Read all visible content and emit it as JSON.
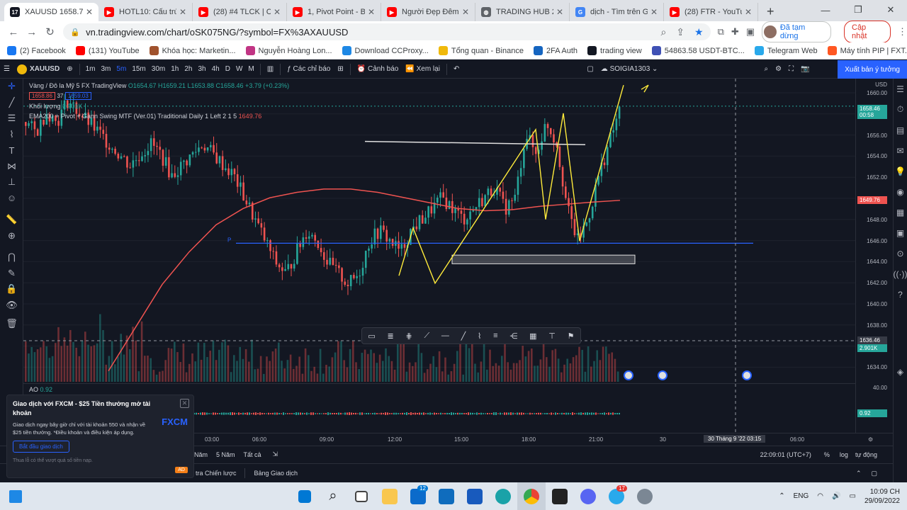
{
  "browser": {
    "tabs": [
      {
        "title": "XAUUSD 1658.71",
        "color": "#131722",
        "glyph": "17",
        "active": true
      },
      {
        "title": "HOTL10: Cấu trúc",
        "color": "#ff0000",
        "glyph": "▶"
      },
      {
        "title": "(28) #4 TLCK | CẤ",
        "color": "#ff0000",
        "glyph": "▶"
      },
      {
        "title": "1, Pivot Point - Ba",
        "color": "#ff0000",
        "glyph": "▶"
      },
      {
        "title": "Người Đẹp Đêm",
        "color": "#ff0000",
        "glyph": "▶"
      },
      {
        "title": "TRADING HUB 2.0",
        "color": "#5f6368",
        "glyph": "◍"
      },
      {
        "title": "dịch - Tìm trên Go",
        "color": "#4285f4",
        "glyph": "G"
      },
      {
        "title": "(28) FTR - YouTub",
        "color": "#ff0000",
        "glyph": "▶"
      }
    ],
    "url": "vn.tradingview.com/chart/oSK075NG/?symbol=FX%3AXAUUSD",
    "paused_label": "Đã tạm dừng",
    "update_label": "Cập nhật",
    "bookmarks": [
      {
        "label": "(2) Facebook",
        "color": "#1877f2"
      },
      {
        "label": "(131) YouTube",
        "color": "#ff0000"
      },
      {
        "label": "Khóa học: Marketin...",
        "color": "#a0522d"
      },
      {
        "label": "Nguyễn Hoàng Lon...",
        "color": "#c13584"
      },
      {
        "label": "Download CCProxy...",
        "color": "#1e88e5"
      },
      {
        "label": "Tổng quan - Binance",
        "color": "#f0b90b"
      },
      {
        "label": "2FA Auth",
        "color": "#1565c0"
      },
      {
        "label": "trading view",
        "color": "#131722"
      },
      {
        "label": "54863.58 USDT-BTC...",
        "color": "#3f51b5"
      },
      {
        "label": "Telegram Web",
        "color": "#29a9eb"
      },
      {
        "label": "Máy tính PIP | FXT...",
        "color": "#ff5722"
      }
    ]
  },
  "tv": {
    "symbol": "XAUUSD",
    "timeframes": [
      "1m",
      "3m",
      "5m",
      "15m",
      "30m",
      "1h",
      "2h",
      "3h",
      "4h",
      "D",
      "W",
      "M"
    ],
    "selected_tf": "5m",
    "indicators_label": "Các chỉ báo",
    "alert_label": "Cảnh báo",
    "replay_label": "Xem lại",
    "layout_name": "SOIGIA1303",
    "publish_label": "Xuất bản ý tưởng",
    "legend_title": "Vàng / Đô la Mỹ   5   FX   TradingView",
    "ohlc": "O1654.67 H1659.21 L1653.88 C1658.46 +3.79 (+0.23%)",
    "sell_price": "1658.86",
    "spread": "37",
    "buy_price": "1659.03",
    "volume_label": "Khối lượng",
    "volume_value": "2.901K",
    "indicator_line": "EMA200 + Pivot + Gann Swing MTF (Ver.01)  Traditional Daily 1 Left 2 1 5",
    "indicator_value": "1649.76",
    "ao_label": "AO",
    "ao_value": "0.92",
    "pivot_label": "P",
    "currency": "USD",
    "y_ticks": [
      "1660.00",
      "1658.00",
      "1656.00",
      "1654.00",
      "1652.00",
      "1650.00",
      "1648.00",
      "1646.00",
      "1644.00",
      "1642.00",
      "1640.00",
      "1638.00",
      "1636.00",
      "1634.00"
    ],
    "price_tag": "1658.46",
    "price_tag_time": "00:58",
    "ema_tag": "1649.76",
    "cross_tag": "1636.46",
    "vol_tag": "2.901K",
    "ao_ticks": [
      "40.00"
    ],
    "ao_tag": "0.92",
    "x_ticks": [
      "03:00",
      "06:00",
      "09:00",
      "12:00",
      "15:00",
      "18:00",
      "21:00",
      "30",
      "06:00"
    ],
    "cross_date": "30 Tháng 9 '22   03:15",
    "bottom_ranges": [
      "Năm",
      "5 Năm",
      "Tất cả"
    ],
    "time_status": "22:09:01 (UTC+7)",
    "pct": "%",
    "log": "log",
    "auto": "tự động",
    "bottom_tabs": [
      "tra Chiến lược",
      "Bảng Giao dịch"
    ]
  },
  "promo": {
    "title": "Giao dịch với FXCM - $25 Tiền thưởng mở tài khoản",
    "body": "Giao dịch ngay bây giờ chỉ với tài khoản 550 và nhận về $25 tiền thưởng. *Điều khoản và điều kiện áp dụng.",
    "button": "Bắt đầu giao dịch",
    "footer": "Thua lỗ có thể vượt quá số tiền nạp.",
    "logo": "FXCM",
    "ad": "AD"
  },
  "taskbar": {
    "lang": "ENG",
    "time": "10:09 CH",
    "date": "29/09/2022",
    "badge_a": "12",
    "badge_b": "17"
  },
  "chart_data": {
    "type": "candlestick",
    "series_points": [
      1657,
      1656,
      1658,
      1657,
      1659,
      1658,
      1657,
      1656,
      1655,
      1654,
      1653,
      1654,
      1655,
      1654,
      1652,
      1653,
      1654,
      1655,
      1654,
      1653,
      1652,
      1650,
      1648,
      1646,
      1644,
      1643,
      1645,
      1647,
      1646,
      1644,
      1643,
      1642,
      1643,
      1646,
      1647,
      1646,
      1645,
      1647,
      1648,
      1649,
      1650,
      1649,
      1648,
      1649,
      1650,
      1651,
      1649,
      1650,
      1656,
      1654,
      1657,
      1655,
      1649,
      1646,
      1648,
      1652,
      1655,
      1658
    ],
    "ema_points": [
      1634,
      1638,
      1642,
      1645,
      1647.5,
      1649,
      1650,
      1650.5,
      1650.8,
      1650.8,
      1650.5,
      1650,
      1649.5,
      1649,
      1648.8,
      1648.9,
      1649.2,
      1649.4,
      1649.6,
      1649.76
    ],
    "pivot": 1645.8,
    "ylim": [
      1633,
      1661
    ]
  }
}
